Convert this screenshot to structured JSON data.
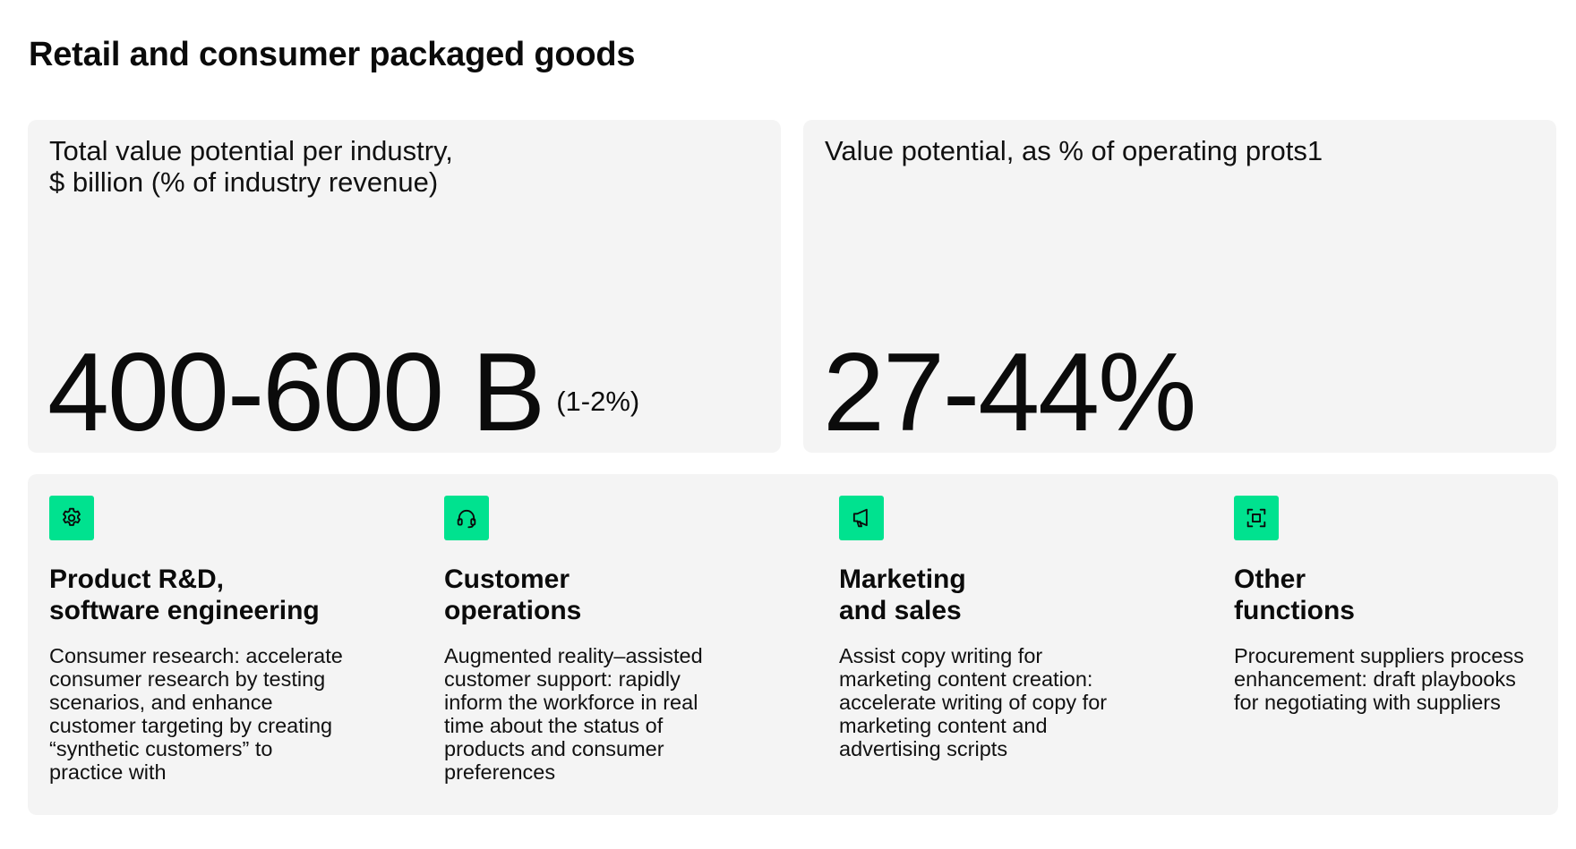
{
  "header": {
    "title": "Retail and consumer packaged goods"
  },
  "stats": {
    "total": {
      "label": "Total value potential per industry,\n$ billion (% of industry revenue)",
      "value": "400-600 B",
      "note": "(1-2%)"
    },
    "operating": {
      "label": "Value potential, as % of operating prots1",
      "value": "27-44%"
    }
  },
  "functions": [
    {
      "icon": "gear-icon",
      "title": "Product R&D,\nsoftware engineering",
      "description": "Consumer research: accelerate\nconsumer research by testing\nscenarios, and enhance\ncustomer targeting by creating\n“synthetic customers” to\npractice with"
    },
    {
      "icon": "headset-icon",
      "title": "Customer\noperations",
      "description": "Augmented reality–assisted\ncustomer support: rapidly\ninform the workforce in real\ntime about the status of\nproducts and consumer\npreferences"
    },
    {
      "icon": "megaphone-icon",
      "title": "Marketing\nand sales",
      "description": "Assist copy writing for\nmarketing content creation:\naccelerate writing of copy for\nmarketing content and\nadvertising scripts"
    },
    {
      "icon": "frame-icon",
      "title": "Other\nfunctions",
      "description": "Procurement suppliers process\nenhancement: draft playbooks\nfor negotiating with suppliers"
    }
  ],
  "colors": {
    "accent": "#00e28f",
    "card_background": "#f4f4f4",
    "text": "#0b0b0b"
  }
}
